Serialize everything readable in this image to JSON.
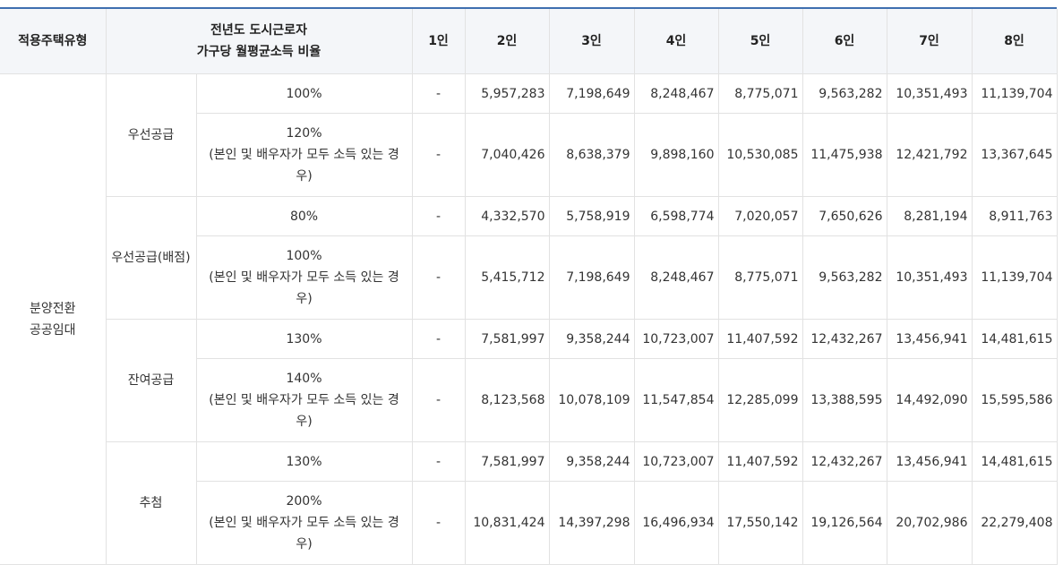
{
  "headers": {
    "type": "적용주택유형",
    "ratio_line1": "전년도 도시근로자",
    "ratio_line2": "가구당 월평균소득 비율",
    "p1": "1인",
    "p2": "2인",
    "p3": "3인",
    "p4": "4인",
    "p5": "5인",
    "p6": "6인",
    "p7": "7인",
    "p8": "8인"
  },
  "housing_type": [
    "분양전환",
    "공공임대"
  ],
  "note": "(본인 및 배우자가 모두 소득 있는 경우)",
  "groups": [
    {
      "name": "우선공급",
      "rows": [
        {
          "ratio": "100%",
          "note": "",
          "v": [
            "-",
            "5,957,283",
            "7,198,649",
            "8,248,467",
            "8,775,071",
            "9,563,282",
            "10,351,493",
            "11,139,704"
          ]
        },
        {
          "ratio": "120%",
          "note": "(본인 및 배우자가 모두 소득 있는 경우)",
          "v": [
            "-",
            "7,040,426",
            "8,638,379",
            "9,898,160",
            "10,530,085",
            "11,475,938",
            "12,421,792",
            "13,367,645"
          ]
        }
      ]
    },
    {
      "name": "우선공급(배점)",
      "rows": [
        {
          "ratio": "80%",
          "note": "",
          "v": [
            "-",
            "4,332,570",
            "5,758,919",
            "6,598,774",
            "7,020,057",
            "7,650,626",
            "8,281,194",
            "8,911,763"
          ]
        },
        {
          "ratio": "100%",
          "note": "(본인 및 배우자가 모두 소득 있는 경우)",
          "v": [
            "-",
            "5,415,712",
            "7,198,649",
            "8,248,467",
            "8,775,071",
            "9,563,282",
            "10,351,493",
            "11,139,704"
          ]
        }
      ]
    },
    {
      "name": "잔여공급",
      "rows": [
        {
          "ratio": "130%",
          "note": "",
          "v": [
            "-",
            "7,581,997",
            "9,358,244",
            "10,723,007",
            "11,407,592",
            "12,432,267",
            "13,456,941",
            "14,481,615"
          ]
        },
        {
          "ratio": "140%",
          "note": "(본인 및 배우자가 모두 소득 있는 경우)",
          "v": [
            "-",
            "8,123,568",
            "10,078,109",
            "11,547,854",
            "12,285,099",
            "13,388,595",
            "14,492,090",
            "15,595,586"
          ]
        }
      ]
    },
    {
      "name": "추첨",
      "rows": [
        {
          "ratio": "130%",
          "note": "",
          "v": [
            "-",
            "7,581,997",
            "9,358,244",
            "10,723,007",
            "11,407,592",
            "12,432,267",
            "13,456,941",
            "14,481,615"
          ]
        },
        {
          "ratio": "200%",
          "note": "(본인 및 배우자가 모두 소득 있는 경우)",
          "v": [
            "-",
            "10,831,424",
            "14,397,298",
            "16,496,934",
            "17,550,142",
            "19,126,564",
            "20,702,986",
            "22,279,408"
          ]
        }
      ]
    }
  ]
}
